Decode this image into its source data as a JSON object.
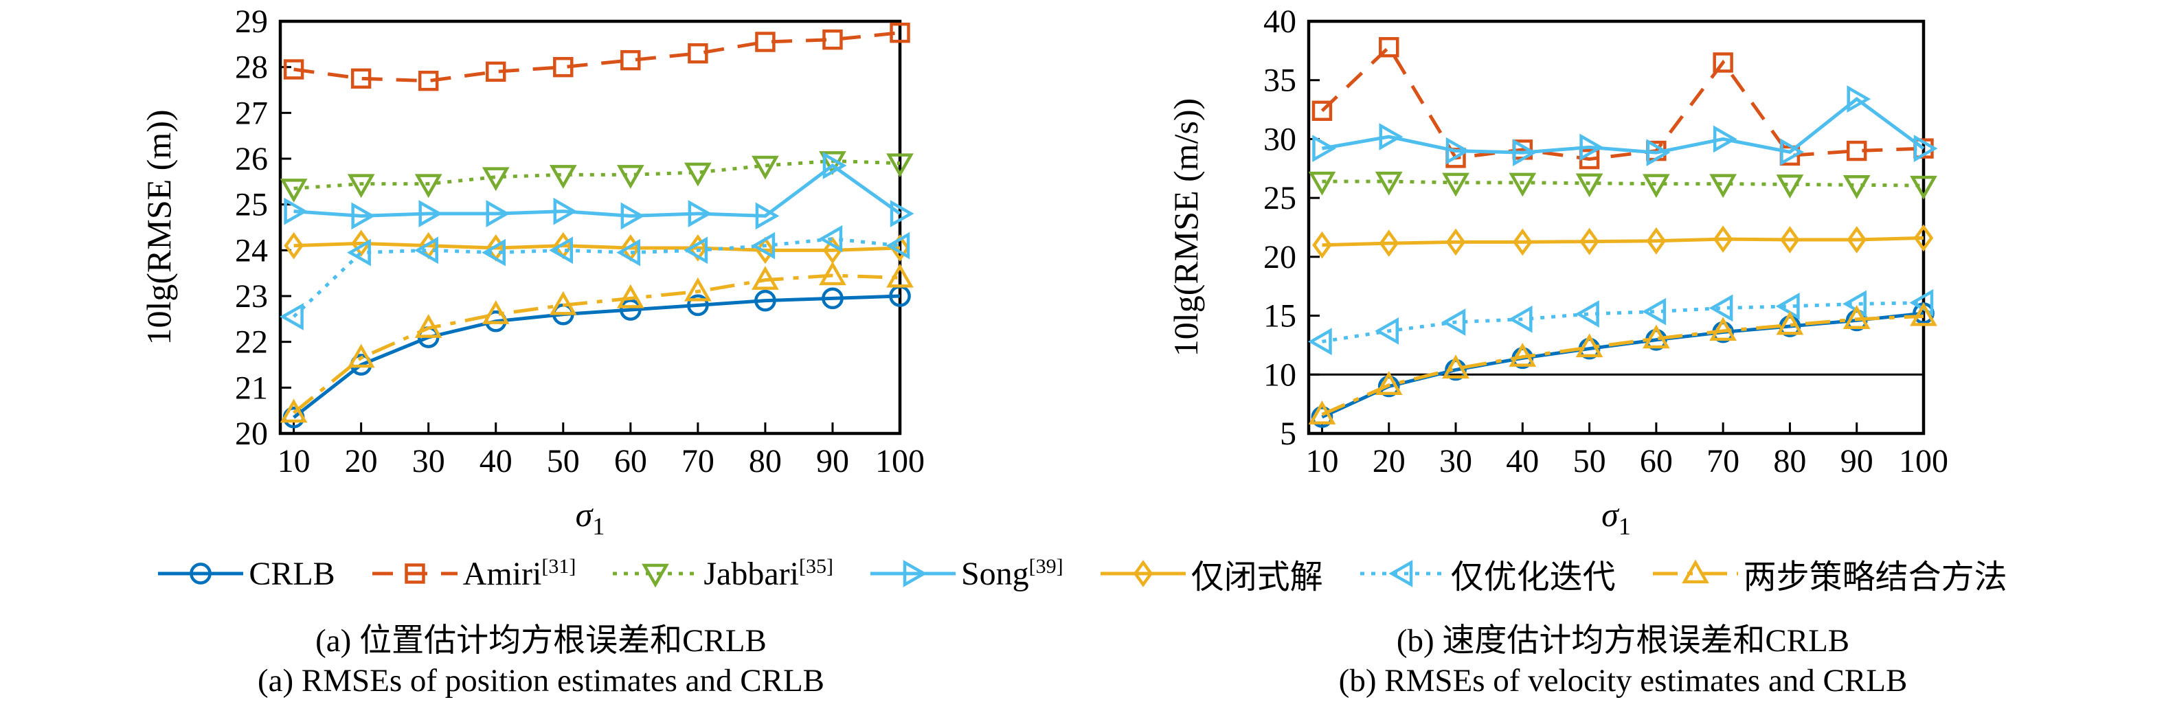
{
  "page": {
    "background": "#ffffff",
    "axis_color": "#000000"
  },
  "legend": {
    "items": [
      {
        "id": "crlb",
        "label": "CRLB",
        "sup": ""
      },
      {
        "id": "amiri",
        "label": "Amiri",
        "sup": "[31]"
      },
      {
        "id": "jabbari",
        "label": "Jabbari",
        "sup": "[35]"
      },
      {
        "id": "song",
        "label": "Song",
        "sup": "[39]"
      },
      {
        "id": "closed-form",
        "label": "仅闭式解",
        "sup": ""
      },
      {
        "id": "iterative",
        "label": "仅优化迭代",
        "sup": ""
      },
      {
        "id": "two-step",
        "label": "两步策略结合方法",
        "sup": ""
      }
    ]
  },
  "captions": {
    "a_zh": "(a) 位置估计均方根误差和CRLB",
    "a_en": "(a) RMSEs of position estimates and CRLB",
    "b_zh": "(b) 速度估计均方根误差和CRLB",
    "b_en": "(b) RMSEs of velocity estimates and CRLB"
  },
  "chart_data": [
    {
      "id": "a",
      "type": "line",
      "ylabel": "10lg(RMSE (m))",
      "xlabel_base": "σ",
      "xlabel_sub": "1",
      "x": [
        10,
        20,
        30,
        40,
        50,
        60,
        70,
        80,
        90,
        100
      ],
      "xticks": [
        10,
        20,
        30,
        40,
        50,
        60,
        70,
        80,
        90,
        100
      ],
      "yticks": [
        20,
        21,
        22,
        23,
        24,
        25,
        26,
        27,
        28,
        29
      ],
      "ylim": [
        20,
        29
      ],
      "xlim": [
        8,
        100
      ],
      "grid": false,
      "series": [
        {
          "id": "crlb",
          "name": "CRLB",
          "color": "#0072BD",
          "line": "solid",
          "marker": "circle",
          "values": [
            20.35,
            21.5,
            22.1,
            22.45,
            22.6,
            22.7,
            22.8,
            22.9,
            22.95,
            23.0
          ]
        },
        {
          "id": "amiri",
          "name": "Amiri[31]",
          "color": "#D95319",
          "line": "dashed",
          "marker": "square",
          "values": [
            27.95,
            27.75,
            27.7,
            27.9,
            28.0,
            28.15,
            28.3,
            28.55,
            28.6,
            28.75
          ]
        },
        {
          "id": "jabbari",
          "name": "Jabbari[35]",
          "color": "#77AC30",
          "line": "dotted",
          "marker": "triangle-down",
          "values": [
            25.35,
            25.45,
            25.45,
            25.6,
            25.65,
            25.65,
            25.7,
            25.85,
            25.95,
            25.9
          ]
        },
        {
          "id": "song",
          "name": "Song[39]",
          "color": "#4DBEEE",
          "line": "solid",
          "marker": "triangle-right",
          "values": [
            24.85,
            24.75,
            24.8,
            24.8,
            24.85,
            24.75,
            24.8,
            24.75,
            25.85,
            24.8
          ]
        },
        {
          "id": "closed-form",
          "name": "仅闭式解",
          "color": "#EDB120",
          "line": "solid",
          "marker": "diamond",
          "values": [
            24.1,
            24.15,
            24.1,
            24.05,
            24.1,
            24.05,
            24.05,
            24.0,
            24.0,
            24.05
          ]
        },
        {
          "id": "iterative",
          "name": "仅优化迭代",
          "color": "#4DBEEE",
          "line": "dotted",
          "marker": "triangle-left",
          "values": [
            22.55,
            23.95,
            24.0,
            23.95,
            24.0,
            23.95,
            24.0,
            24.1,
            24.25,
            24.1
          ]
        },
        {
          "id": "two-step",
          "name": "两步策略结合方法",
          "color": "#EDB120",
          "line": "dashdot",
          "marker": "triangle-up",
          "values": [
            20.45,
            21.65,
            22.3,
            22.6,
            22.8,
            22.95,
            23.1,
            23.35,
            23.45,
            23.4
          ]
        }
      ]
    },
    {
      "id": "b",
      "type": "line",
      "ylabel": "10lg(RMSE (m/s))",
      "xlabel_base": "σ",
      "xlabel_sub": "1",
      "x": [
        10,
        20,
        30,
        40,
        50,
        60,
        70,
        80,
        90,
        100
      ],
      "xticks": [
        10,
        20,
        30,
        40,
        50,
        60,
        70,
        80,
        90,
        100
      ],
      "yticks": [
        5,
        10,
        15,
        20,
        25,
        30,
        35,
        40
      ],
      "ylim": [
        5,
        40
      ],
      "xlim": [
        8,
        100
      ],
      "grid": false,
      "ref_line_y": 10,
      "series": [
        {
          "id": "crlb",
          "name": "CRLB",
          "color": "#0072BD",
          "line": "solid",
          "marker": "circle",
          "values": [
            6.4,
            9.0,
            10.4,
            11.4,
            12.2,
            12.95,
            13.6,
            14.1,
            14.6,
            15.2
          ]
        },
        {
          "id": "amiri",
          "name": "Amiri[31]",
          "color": "#D95319",
          "line": "dashed",
          "marker": "square",
          "values": [
            32.4,
            37.8,
            28.4,
            29.1,
            28.3,
            29.0,
            36.5,
            28.6,
            29.0,
            29.2
          ]
        },
        {
          "id": "jabbari",
          "name": "Jabbari[35]",
          "color": "#77AC30",
          "line": "dotted",
          "marker": "triangle-down",
          "values": [
            26.4,
            26.4,
            26.3,
            26.3,
            26.25,
            26.2,
            26.2,
            26.15,
            26.1,
            26.05
          ]
        },
        {
          "id": "song",
          "name": "Song[39]",
          "color": "#4DBEEE",
          "line": "solid",
          "marker": "triangle-right",
          "values": [
            29.2,
            30.2,
            29.0,
            28.85,
            29.3,
            28.85,
            30.0,
            28.9,
            33.4,
            29.2
          ]
        },
        {
          "id": "closed-form",
          "name": "仅闭式解",
          "color": "#EDB120",
          "line": "solid",
          "marker": "diamond",
          "values": [
            21.0,
            21.15,
            21.25,
            21.25,
            21.3,
            21.35,
            21.5,
            21.45,
            21.45,
            21.6
          ]
        },
        {
          "id": "iterative",
          "name": "仅优化迭代",
          "color": "#4DBEEE",
          "line": "dotted",
          "marker": "triangle-left",
          "values": [
            12.8,
            13.7,
            14.45,
            14.7,
            15.15,
            15.35,
            15.65,
            15.8,
            16.0,
            16.1
          ]
        },
        {
          "id": "two-step",
          "name": "两步策略结合方法",
          "color": "#EDB120",
          "line": "dashdot",
          "marker": "triangle-up",
          "values": [
            6.6,
            9.1,
            10.5,
            11.5,
            12.3,
            13.05,
            13.7,
            14.2,
            14.7,
            14.95
          ]
        }
      ]
    }
  ]
}
